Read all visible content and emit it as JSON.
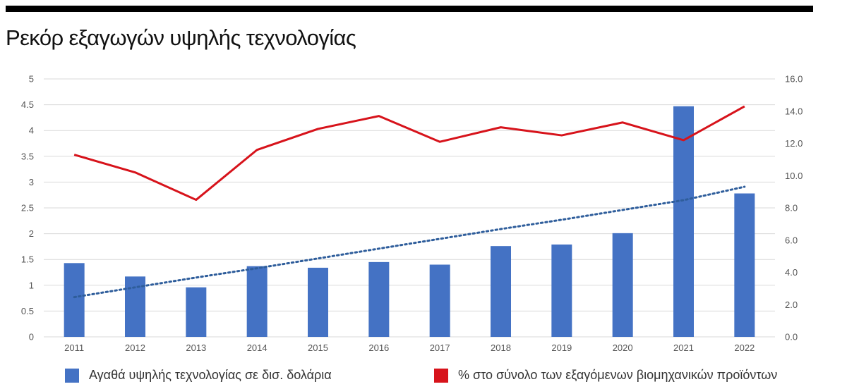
{
  "title": "Ρεκόρ εξαγωγών υψηλής τεχνολογίας",
  "colors": {
    "bars": "#4472c4",
    "line": "#d7131b",
    "trend": "#2e5d9b",
    "grid": "#d9d9d9",
    "rule": "#000000"
  },
  "chart_data": {
    "type": "bar",
    "title": "Ρεκόρ εξαγωγών υψηλής τεχνολογίας",
    "categories": [
      "2011",
      "2012",
      "2013",
      "2014",
      "2015",
      "2016",
      "2017",
      "2018",
      "2019",
      "2020",
      "2021",
      "2022"
    ],
    "y_left": {
      "min": 0,
      "max": 5,
      "ticks": [
        "0",
        "0.5",
        "1",
        "1.5",
        "2",
        "2.5",
        "3",
        "3.5",
        "4",
        "4.5",
        "5"
      ]
    },
    "y_right": {
      "min": 0,
      "max": 16,
      "ticks": [
        "0.0",
        "2.0",
        "4.0",
        "6.0",
        "8.0",
        "10.0",
        "12.0",
        "14.0",
        "16.0"
      ]
    },
    "grid": true,
    "legend_position": "bottom",
    "series": [
      {
        "name": "Αγαθά υψηλής τεχνολογίας σε δισ. δολάρια",
        "type": "bar",
        "axis": "left",
        "values": [
          1.43,
          1.17,
          0.96,
          1.37,
          1.34,
          1.45,
          1.4,
          1.76,
          1.79,
          2.01,
          4.47,
          2.78
        ]
      },
      {
        "name": "% στο σύνολο των εξαγόμενων βιομηχανικών προϊόντων",
        "type": "line",
        "axis": "right",
        "values": [
          11.3,
          10.2,
          8.5,
          11.6,
          12.9,
          13.7,
          12.1,
          13.0,
          12.5,
          13.3,
          12.2,
          14.3
        ]
      },
      {
        "type": "trendline",
        "axis": "left",
        "style": "dotted",
        "values": [
          0.77,
          0.96,
          1.15,
          1.33,
          1.52,
          1.71,
          1.9,
          2.09,
          2.27,
          2.46,
          2.65,
          2.91
        ]
      }
    ]
  }
}
